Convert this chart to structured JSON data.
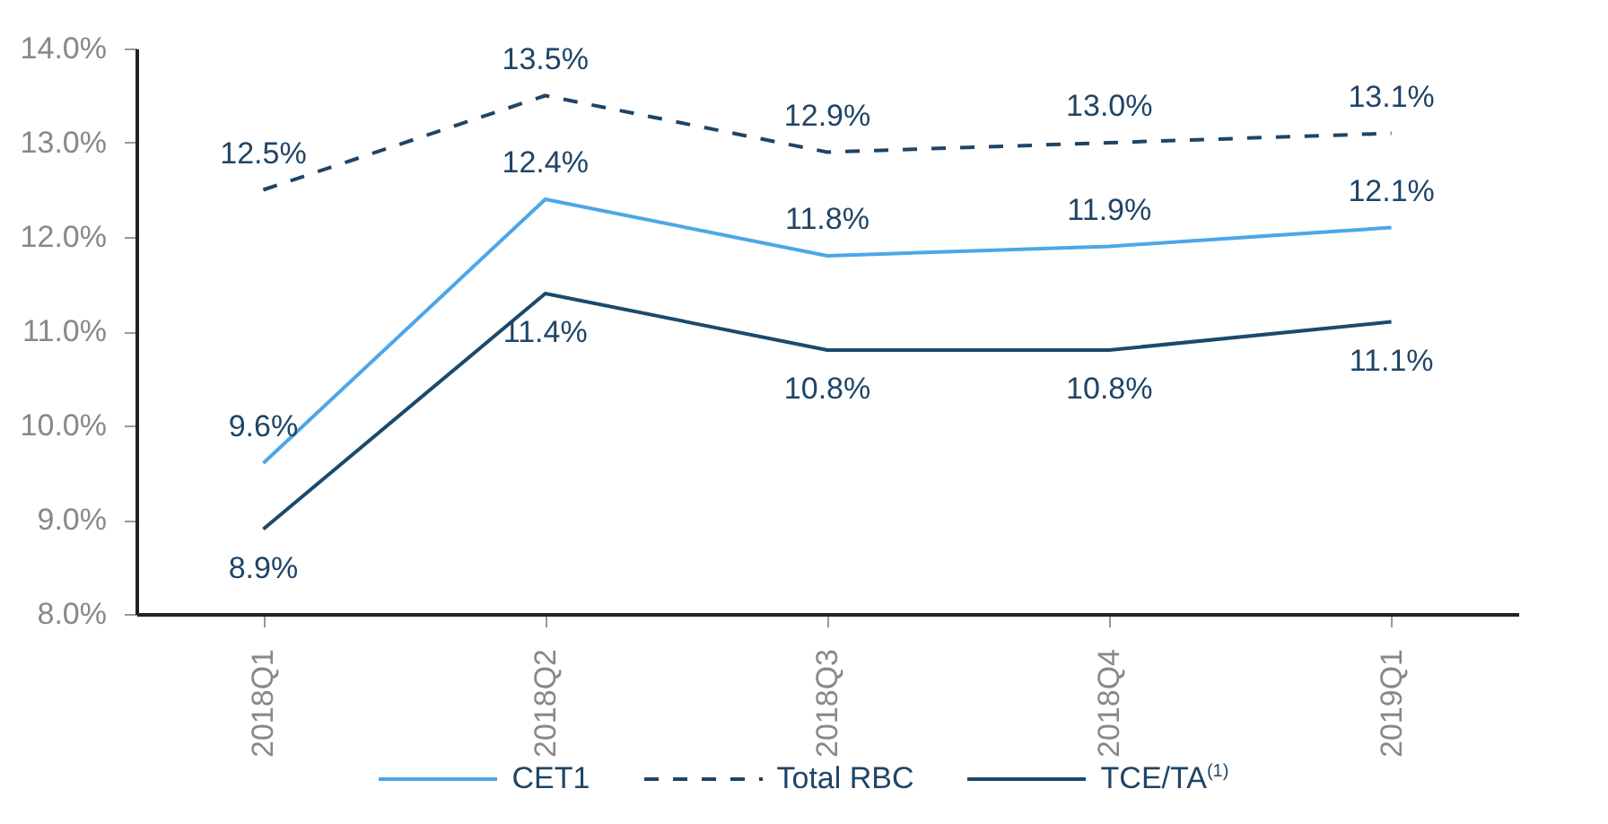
{
  "chart_data": {
    "type": "line",
    "categories": [
      "2018Q1",
      "2018Q2",
      "2018Q3",
      "2018Q4",
      "2019Q1"
    ],
    "series": [
      {
        "name": "CET1",
        "color": "#4da6e8",
        "line_style": "solid",
        "values": [
          9.6,
          12.4,
          11.8,
          11.9,
          12.1
        ],
        "value_labels": [
          "9.6%",
          "12.4%",
          "11.8%",
          "11.9%",
          "12.1%"
        ]
      },
      {
        "name": "Total RBC",
        "color": "#1f4466",
        "line_style": "dashed",
        "values": [
          12.5,
          13.5,
          12.9,
          13.0,
          13.1
        ],
        "value_labels": [
          "12.5%",
          "13.5%",
          "12.9%",
          "13.0%",
          "13.1%"
        ]
      },
      {
        "name": "TCE/TA$^{(1)}$",
        "color": "#1a4a6e",
        "line_style": "solid",
        "values": [
          8.9,
          11.4,
          10.8,
          10.8,
          11.1
        ],
        "value_labels": [
          "8.9%",
          "11.4%",
          "10.8%",
          "10.8%",
          "11.1%"
        ]
      }
    ],
    "ylim": [
      8,
      14
    ],
    "yticks": [
      {
        "value": 8,
        "label": "8.0%"
      },
      {
        "value": 9,
        "label": "9.0%"
      },
      {
        "value": 10,
        "label": "10.0%"
      },
      {
        "value": 11,
        "label": "11.0%"
      },
      {
        "value": 12,
        "label": "12.0%"
      },
      {
        "value": 13,
        "label": "13.0%"
      },
      {
        "value": 14,
        "label": "14.0%"
      }
    ],
    "grid": false,
    "marker": "none",
    "legend": "bottom"
  }
}
